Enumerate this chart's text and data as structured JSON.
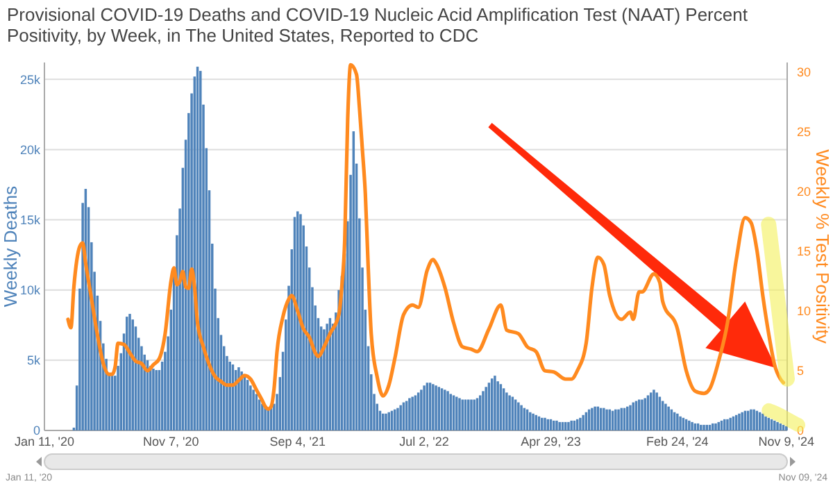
{
  "chart_data": {
    "type": "bar",
    "title": "Provisional COVID-19 Deaths and COVID-19 Nucleic Acid Amplification Test (NAAT) Percent Positivity, by Week, in The United States, Reported to CDC",
    "ylabel": "Weekly Deaths",
    "y2label": "Weekly % Test Positivity",
    "annotations": [
      "Jan 11, '20",
      "Nov 09, '24"
    ],
    "xlim": [
      "2020-01-11",
      "2024-11-11"
    ],
    "xticks": [
      {
        "value": "2020-01-11",
        "label": "Jan 11, '20"
      },
      {
        "value": "2020-11-07",
        "label": "Nov 7, '20"
      },
      {
        "value": "2021-09-04",
        "label": "Sep 4, '21"
      },
      {
        "value": "2022-07-02",
        "label": "Jul 2, '22"
      },
      {
        "value": "2023-04-29",
        "label": "Apr 29, '23"
      },
      {
        "value": "2024-02-24",
        "label": "Feb 24, '24"
      },
      {
        "value": "2024-11-09",
        "label": "Nov 9, '24"
      }
    ],
    "ylim": [
      0,
      26200
    ],
    "yticks": [
      0,
      {
        "value": 5000,
        "label": "5k"
      },
      {
        "value": 10000,
        "label": "10k"
      },
      {
        "value": 15000,
        "label": "15k"
      },
      {
        "value": 20000,
        "label": "20k"
      },
      {
        "value": 25000,
        "label": "25k"
      }
    ],
    "y2lim": [
      0,
      30.8
    ],
    "y2ticks": [
      0,
      5,
      10,
      15,
      20,
      25,
      30
    ],
    "grid": "y",
    "series": [
      {
        "color": "#4f83ba",
        "x": [
          "2020-03-21",
          "2020-03-28",
          "2020-04-04",
          "2020-04-11",
          "2020-04-18",
          "2020-04-25",
          "2020-05-02",
          "2020-05-09",
          "2020-05-16",
          "2020-05-23",
          "2020-05-30",
          "2020-06-06",
          "2020-06-13",
          "2020-06-20",
          "2020-06-27",
          "2020-07-04",
          "2020-07-11",
          "2020-07-18",
          "2020-07-25",
          "2020-08-01",
          "2020-08-08",
          "2020-08-15",
          "2020-08-22",
          "2020-08-29",
          "2020-09-05",
          "2020-09-12",
          "2020-09-19",
          "2020-09-26",
          "2020-10-03",
          "2020-10-10",
          "2020-10-17",
          "2020-10-24",
          "2020-10-31",
          "2020-11-07",
          "2020-11-14",
          "2020-11-21",
          "2020-11-28",
          "2020-12-05",
          "2020-12-12",
          "2020-12-19",
          "2020-12-26",
          "2021-01-02",
          "2021-01-09",
          "2021-01-16",
          "2021-01-23",
          "2021-01-30",
          "2021-02-06",
          "2021-02-13",
          "2021-02-20",
          "2021-02-27",
          "2021-03-06",
          "2021-03-13",
          "2021-03-20",
          "2021-03-27",
          "2021-04-03",
          "2021-04-10",
          "2021-04-17",
          "2021-04-24",
          "2021-05-01",
          "2021-05-08",
          "2021-05-15",
          "2021-05-22",
          "2021-05-29",
          "2021-06-05",
          "2021-06-12",
          "2021-06-19",
          "2021-06-26",
          "2021-07-03",
          "2021-07-10",
          "2021-07-17",
          "2021-07-24",
          "2021-07-31",
          "2021-08-07",
          "2021-08-14",
          "2021-08-21",
          "2021-08-28",
          "2021-09-04",
          "2021-09-11",
          "2021-09-18",
          "2021-09-25",
          "2021-10-02",
          "2021-10-09",
          "2021-10-16",
          "2021-10-23",
          "2021-10-30",
          "2021-11-06",
          "2021-11-13",
          "2021-11-20",
          "2021-11-27",
          "2021-12-04",
          "2021-12-11",
          "2021-12-18",
          "2021-12-25",
          "2022-01-01",
          "2022-01-08",
          "2022-01-15",
          "2022-01-22",
          "2022-01-29",
          "2022-02-05",
          "2022-02-12",
          "2022-02-19",
          "2022-02-26",
          "2022-03-05",
          "2022-03-12",
          "2022-03-19",
          "2022-03-26",
          "2022-04-02",
          "2022-04-09",
          "2022-04-16",
          "2022-04-23",
          "2022-04-30",
          "2022-05-07",
          "2022-05-14",
          "2022-05-21",
          "2022-05-28",
          "2022-06-04",
          "2022-06-11",
          "2022-06-18",
          "2022-06-25",
          "2022-07-02",
          "2022-07-09",
          "2022-07-16",
          "2022-07-23",
          "2022-07-30",
          "2022-08-06",
          "2022-08-13",
          "2022-08-20",
          "2022-08-27",
          "2022-09-03",
          "2022-09-10",
          "2022-09-17",
          "2022-09-24",
          "2022-10-01",
          "2022-10-08",
          "2022-10-15",
          "2022-10-22",
          "2022-10-29",
          "2022-11-05",
          "2022-11-12",
          "2022-11-19",
          "2022-11-26",
          "2022-12-03",
          "2022-12-10",
          "2022-12-17",
          "2022-12-24",
          "2022-12-31",
          "2023-01-07",
          "2023-01-14",
          "2023-01-21",
          "2023-01-28",
          "2023-02-04",
          "2023-02-11",
          "2023-02-18",
          "2023-02-25",
          "2023-03-04",
          "2023-03-11",
          "2023-03-18",
          "2023-03-25",
          "2023-04-01",
          "2023-04-08",
          "2023-04-15",
          "2023-04-22",
          "2023-04-29",
          "2023-05-06",
          "2023-05-13",
          "2023-05-20",
          "2023-05-27",
          "2023-06-03",
          "2023-06-10",
          "2023-06-17",
          "2023-06-24",
          "2023-07-01",
          "2023-07-08",
          "2023-07-15",
          "2023-07-22",
          "2023-07-29",
          "2023-08-05",
          "2023-08-12",
          "2023-08-19",
          "2023-08-26",
          "2023-09-02",
          "2023-09-09",
          "2023-09-16",
          "2023-09-23",
          "2023-09-30",
          "2023-10-07",
          "2023-10-14",
          "2023-10-21",
          "2023-10-28",
          "2023-11-04",
          "2023-11-11",
          "2023-11-18",
          "2023-11-25",
          "2023-12-02",
          "2023-12-09",
          "2023-12-16",
          "2023-12-23",
          "2023-12-30",
          "2024-01-06",
          "2024-01-13",
          "2024-01-20",
          "2024-01-27",
          "2024-02-03",
          "2024-02-10",
          "2024-02-17",
          "2024-02-24",
          "2024-03-02",
          "2024-03-09",
          "2024-03-16",
          "2024-03-23",
          "2024-03-30",
          "2024-04-06",
          "2024-04-13",
          "2024-04-20",
          "2024-04-27",
          "2024-05-04",
          "2024-05-11",
          "2024-05-18",
          "2024-05-25",
          "2024-06-01",
          "2024-06-08",
          "2024-06-15",
          "2024-06-22",
          "2024-06-29",
          "2024-07-06",
          "2024-07-13",
          "2024-07-20",
          "2024-07-27",
          "2024-08-03",
          "2024-08-10",
          "2024-08-17",
          "2024-08-24",
          "2024-08-31",
          "2024-09-07",
          "2024-09-14",
          "2024-09-21",
          "2024-09-28",
          "2024-10-05",
          "2024-10-12",
          "2024-10-19",
          "2024-10-26",
          "2024-11-02",
          "2024-11-09"
        ],
        "values": [
          200,
          3200,
          10100,
          16200,
          17200,
          15900,
          13400,
          11300,
          9600,
          7800,
          6200,
          5100,
          4000,
          3900,
          3900,
          4600,
          5500,
          6900,
          8100,
          8300,
          7900,
          7400,
          6600,
          6000,
          5400,
          5000,
          4600,
          4400,
          4300,
          4300,
          4900,
          5600,
          6700,
          8600,
          11000,
          13900,
          15800,
          18700,
          20700,
          22600,
          24000,
          25200,
          25900,
          25600,
          23200,
          20100,
          17100,
          13300,
          10100,
          8000,
          6800,
          6000,
          5300,
          4900,
          4700,
          4300,
          4500,
          4200,
          4000,
          3600,
          3200,
          2900,
          2600,
          2200,
          1900,
          1700,
          1600,
          1600,
          1900,
          2600,
          3800,
          5600,
          7900,
          10300,
          12900,
          15200,
          15600,
          15400,
          14600,
          13100,
          11600,
          10200,
          8900,
          8000,
          7400,
          7200,
          7600,
          8000,
          7600,
          8400,
          10000,
          11000,
          12600,
          14900,
          18200,
          21300,
          19000,
          15100,
          11600,
          8600,
          6000,
          4000,
          2600,
          1900,
          1400,
          1200,
          1200,
          1300,
          1400,
          1500,
          1600,
          1800,
          2000,
          2100,
          2300,
          2400,
          2500,
          2700,
          2900,
          3200,
          3400,
          3400,
          3300,
          3200,
          3100,
          3000,
          2900,
          2800,
          2600,
          2500,
          2400,
          2300,
          2200,
          2200,
          2200,
          2200,
          2200,
          2300,
          2500,
          2800,
          3100,
          3400,
          3700,
          3900,
          3500,
          3300,
          3000,
          2700,
          2500,
          2400,
          2200,
          2000,
          1800,
          1600,
          1500,
          1300,
          1200,
          1100,
          1000,
          900,
          900,
          800,
          800,
          700,
          700,
          600,
          600,
          600,
          600,
          700,
          700,
          800,
          900,
          1100,
          1300,
          1500,
          1600,
          1700,
          1700,
          1600,
          1600,
          1500,
          1500,
          1400,
          1500,
          1500,
          1600,
          1600,
          1700,
          1800,
          2000,
          2100,
          2200,
          2200,
          2300,
          2500,
          2700,
          2900,
          2700,
          2400,
          2100,
          1900,
          1700,
          1500,
          1300,
          1200,
          1000,
          900,
          800,
          700,
          600,
          500,
          500,
          400,
          400,
          400,
          400,
          500,
          500,
          600,
          700,
          800,
          800,
          900,
          1000,
          1100,
          1200,
          1300,
          1400,
          1400,
          1500,
          1500,
          1400,
          1300,
          1200,
          1000,
          900,
          800,
          700,
          600,
          500,
          400,
          300
        ]
      },
      {
        "type": "line",
        "axis": "y2",
        "color": "#ff8a1f",
        "x": [
          "2020-03-07",
          "2020-03-14",
          "2020-03-21",
          "2020-04-04",
          "2020-04-11",
          "2020-04-18",
          "2020-05-02",
          "2020-05-16",
          "2020-05-30",
          "2020-06-13",
          "2020-06-20",
          "2020-06-27",
          "2020-07-04",
          "2020-07-18",
          "2020-08-01",
          "2020-08-15",
          "2020-08-29",
          "2020-09-12",
          "2020-09-26",
          "2020-10-10",
          "2020-10-24",
          "2020-11-07",
          "2020-11-14",
          "2020-11-21",
          "2020-11-28",
          "2020-12-05",
          "2020-12-12",
          "2020-12-19",
          "2020-12-26",
          "2021-01-02",
          "2021-01-09",
          "2021-01-23",
          "2021-02-06",
          "2021-02-20",
          "2021-03-06",
          "2021-03-20",
          "2021-04-03",
          "2021-04-17",
          "2021-05-01",
          "2021-05-15",
          "2021-05-29",
          "2021-06-12",
          "2021-06-19",
          "2021-06-26",
          "2021-07-03",
          "2021-07-10",
          "2021-07-17",
          "2021-07-31",
          "2021-08-14",
          "2021-08-21",
          "2021-09-04",
          "2021-09-18",
          "2021-10-02",
          "2021-10-16",
          "2021-10-23",
          "2021-11-06",
          "2021-11-20",
          "2021-12-11",
          "2021-12-18",
          "2021-12-25",
          "2022-01-01",
          "2022-01-08",
          "2022-01-22",
          "2022-01-29",
          "2022-02-05",
          "2022-02-12",
          "2022-02-19",
          "2022-02-26",
          "2022-03-12",
          "2022-03-26",
          "2022-04-09",
          "2022-04-23",
          "2022-05-14",
          "2022-06-04",
          "2022-06-18",
          "2022-07-09",
          "2022-07-23",
          "2022-07-30",
          "2022-08-20",
          "2022-09-10",
          "2022-10-01",
          "2022-10-22",
          "2022-11-05",
          "2022-12-03",
          "2022-12-31",
          "2023-01-14",
          "2023-02-11",
          "2023-03-04",
          "2023-03-25",
          "2023-04-15",
          "2023-05-06",
          "2023-06-03",
          "2023-06-17",
          "2023-07-01",
          "2023-07-22",
          "2023-08-05",
          "2023-08-19",
          "2023-09-02",
          "2023-09-16",
          "2023-10-14",
          "2023-11-04",
          "2023-11-11",
          "2023-11-25",
          "2023-12-02",
          "2023-12-30",
          "2024-01-13",
          "2024-01-20",
          "2024-02-24",
          "2024-03-16",
          "2024-04-06",
          "2024-04-27",
          "2024-05-11",
          "2024-06-01",
          "2024-06-22",
          "2024-07-13",
          "2024-08-03",
          "2024-08-17",
          "2024-08-31",
          "2024-09-14",
          "2024-09-28",
          "2024-10-12",
          "2024-10-26",
          "2024-11-02"
        ],
        "values": [
          9.3,
          8.6,
          12.0,
          15.4,
          15.7,
          14.0,
          11.0,
          8.0,
          5.6,
          4.7,
          4.7,
          5.3,
          7.3,
          7.2,
          6.5,
          5.8,
          5.6,
          5.0,
          5.5,
          6.0,
          8.1,
          12.5,
          13.6,
          12.2,
          12.5,
          13.3,
          12.0,
          11.9,
          13.5,
          12.0,
          9.0,
          7.0,
          5.5,
          4.5,
          4.1,
          3.8,
          3.8,
          4.2,
          4.6,
          4.3,
          3.4,
          2.5,
          2.0,
          1.8,
          2.0,
          3.5,
          6.6,
          9.5,
          11.0,
          11.3,
          10.0,
          8.5,
          7.8,
          6.5,
          6.2,
          7.0,
          8.1,
          9.7,
          12.0,
          15.9,
          26.0,
          30.6,
          29.8,
          27.0,
          23.5,
          19.8,
          13.5,
          8.1,
          4.5,
          2.9,
          3.8,
          6.0,
          9.7,
          10.5,
          10.3,
          13.4,
          14.3,
          14.0,
          12.0,
          9.0,
          7.0,
          6.8,
          6.6,
          8.5,
          10.5,
          8.4,
          8.1,
          7.0,
          6.6,
          5.0,
          4.9,
          4.3,
          4.3,
          5.0,
          7.3,
          12.0,
          14.5,
          13.9,
          11.3,
          9.3,
          9.9,
          9.3,
          11.6,
          11.6,
          13.1,
          12.4,
          10.8,
          8.5,
          5.0,
          3.3,
          3.1,
          3.5,
          5.8,
          9.0,
          14.3,
          17.8,
          17.4,
          15.1,
          11.3,
          8.1,
          5.5,
          4.3,
          4.0
        ]
      }
    ]
  }
}
